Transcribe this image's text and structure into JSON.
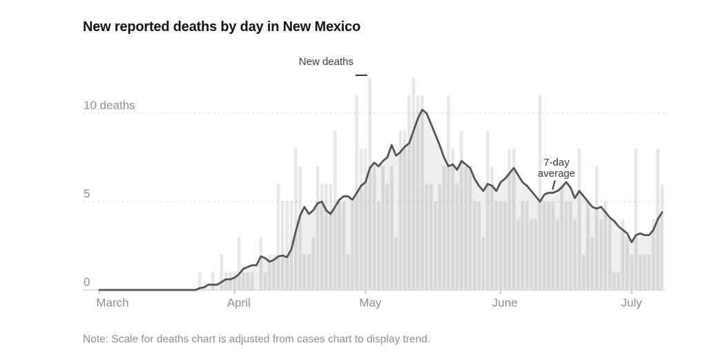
{
  "title": "New reported deaths by day in New Mexico",
  "note": "Note: Scale for deaths chart is adjusted from cases chart to display trend.",
  "annotations": {
    "new_deaths_label": "New deaths",
    "avg_label": "7-day average"
  },
  "colors": {
    "title": "#121212",
    "annotation": "#3a3a3a",
    "bar": "#111111",
    "bar_opacity": 0.105,
    "area": "#efefef",
    "line": "#545454",
    "grid": "#d9d9d9",
    "baseline": "#d6d6d6",
    "tick": "#b3b3b3",
    "axis_label": "#8f8f8f",
    "note": "#8f8f8f"
  },
  "chart_data": {
    "type": "bar",
    "title": "New reported deaths by day in New Mexico",
    "start_date": "2020-03-01",
    "end_date": "2020-07-08",
    "x_ticks": [
      {
        "label": "March",
        "day_index": 0
      },
      {
        "label": "April",
        "day_index": 31
      },
      {
        "label": "May",
        "day_index": 61
      },
      {
        "label": "June",
        "day_index": 92
      },
      {
        "label": "July",
        "day_index": 122
      }
    ],
    "y_ticks": [
      {
        "value": 0,
        "label": "0"
      },
      {
        "value": 5,
        "label": "5"
      },
      {
        "value": 10,
        "label": "10 deaths"
      }
    ],
    "ylim": [
      0,
      12.4
    ],
    "grid": "dashed-horizontal",
    "legend_position": "annotations-inline",
    "series": [
      {
        "name": "New deaths",
        "type": "bar",
        "values": [
          0,
          0,
          0,
          0,
          0,
          0,
          0,
          0,
          0,
          0,
          0,
          0,
          0,
          0,
          0,
          0,
          0,
          0,
          0,
          0,
          0,
          0,
          0,
          1,
          0,
          0,
          1,
          0,
          2,
          1,
          1,
          1,
          3,
          1,
          1,
          1,
          0,
          3,
          1,
          2,
          2,
          6,
          5,
          5,
          5,
          8,
          7,
          2,
          2,
          3,
          7,
          6,
          6,
          6,
          9,
          5,
          5,
          2,
          5,
          11,
          8,
          8,
          12,
          7,
          5,
          7,
          6,
          7,
          3,
          9,
          9,
          11,
          12,
          11,
          11,
          6,
          6,
          5,
          6,
          7,
          11,
          8,
          6,
          9,
          7,
          7,
          5,
          5,
          3,
          9,
          7,
          5,
          5,
          5,
          8,
          8,
          4,
          5,
          5,
          4,
          4,
          11,
          5,
          5,
          5,
          4,
          6,
          5,
          5,
          4,
          8,
          2,
          5,
          3,
          7,
          4,
          5,
          4,
          1,
          1,
          4,
          3,
          2,
          8,
          2,
          2,
          2,
          4,
          8,
          6
        ]
      },
      {
        "name": "7-day average",
        "type": "line",
        "values": [
          0,
          0,
          0,
          0,
          0,
          0,
          0,
          0,
          0,
          0,
          0,
          0,
          0,
          0,
          0,
          0,
          0,
          0,
          0,
          0,
          0,
          0,
          0,
          0.1,
          0.15,
          0.3,
          0.3,
          0.3,
          0.45,
          0.6,
          0.6,
          0.7,
          0.9,
          1.2,
          1.3,
          1.4,
          1.4,
          1.9,
          1.8,
          1.6,
          1.7,
          1.9,
          1.95,
          1.85,
          2.3,
          3.3,
          4.2,
          4.7,
          4.3,
          4.5,
          4.9,
          5.0,
          4.5,
          4.3,
          4.7,
          5.1,
          5.3,
          5.3,
          5.1,
          5.5,
          5.9,
          6.1,
          6.9,
          7.2,
          7.0,
          7.3,
          7.5,
          8.2,
          7.6,
          7.8,
          8.1,
          8.3,
          9.0,
          9.7,
          10.2,
          10.0,
          9.4,
          8.8,
          8.2,
          7.5,
          7.0,
          7.1,
          6.8,
          7.3,
          7.1,
          6.9,
          6.3,
          5.9,
          5.6,
          6.0,
          5.9,
          5.6,
          6.1,
          6.3,
          6.6,
          6.9,
          6.5,
          6.1,
          5.9,
          5.6,
          5.3,
          5.0,
          5.4,
          5.5,
          5.5,
          5.6,
          5.8,
          6.1,
          5.8,
          5.2,
          5.6,
          5.3,
          5.0,
          4.7,
          4.6,
          4.7,
          4.4,
          4.1,
          3.9,
          3.6,
          3.4,
          3.2,
          2.7,
          3.1,
          3.2,
          3.1,
          3.1,
          3.4,
          4.0,
          4.4
        ]
      }
    ]
  }
}
